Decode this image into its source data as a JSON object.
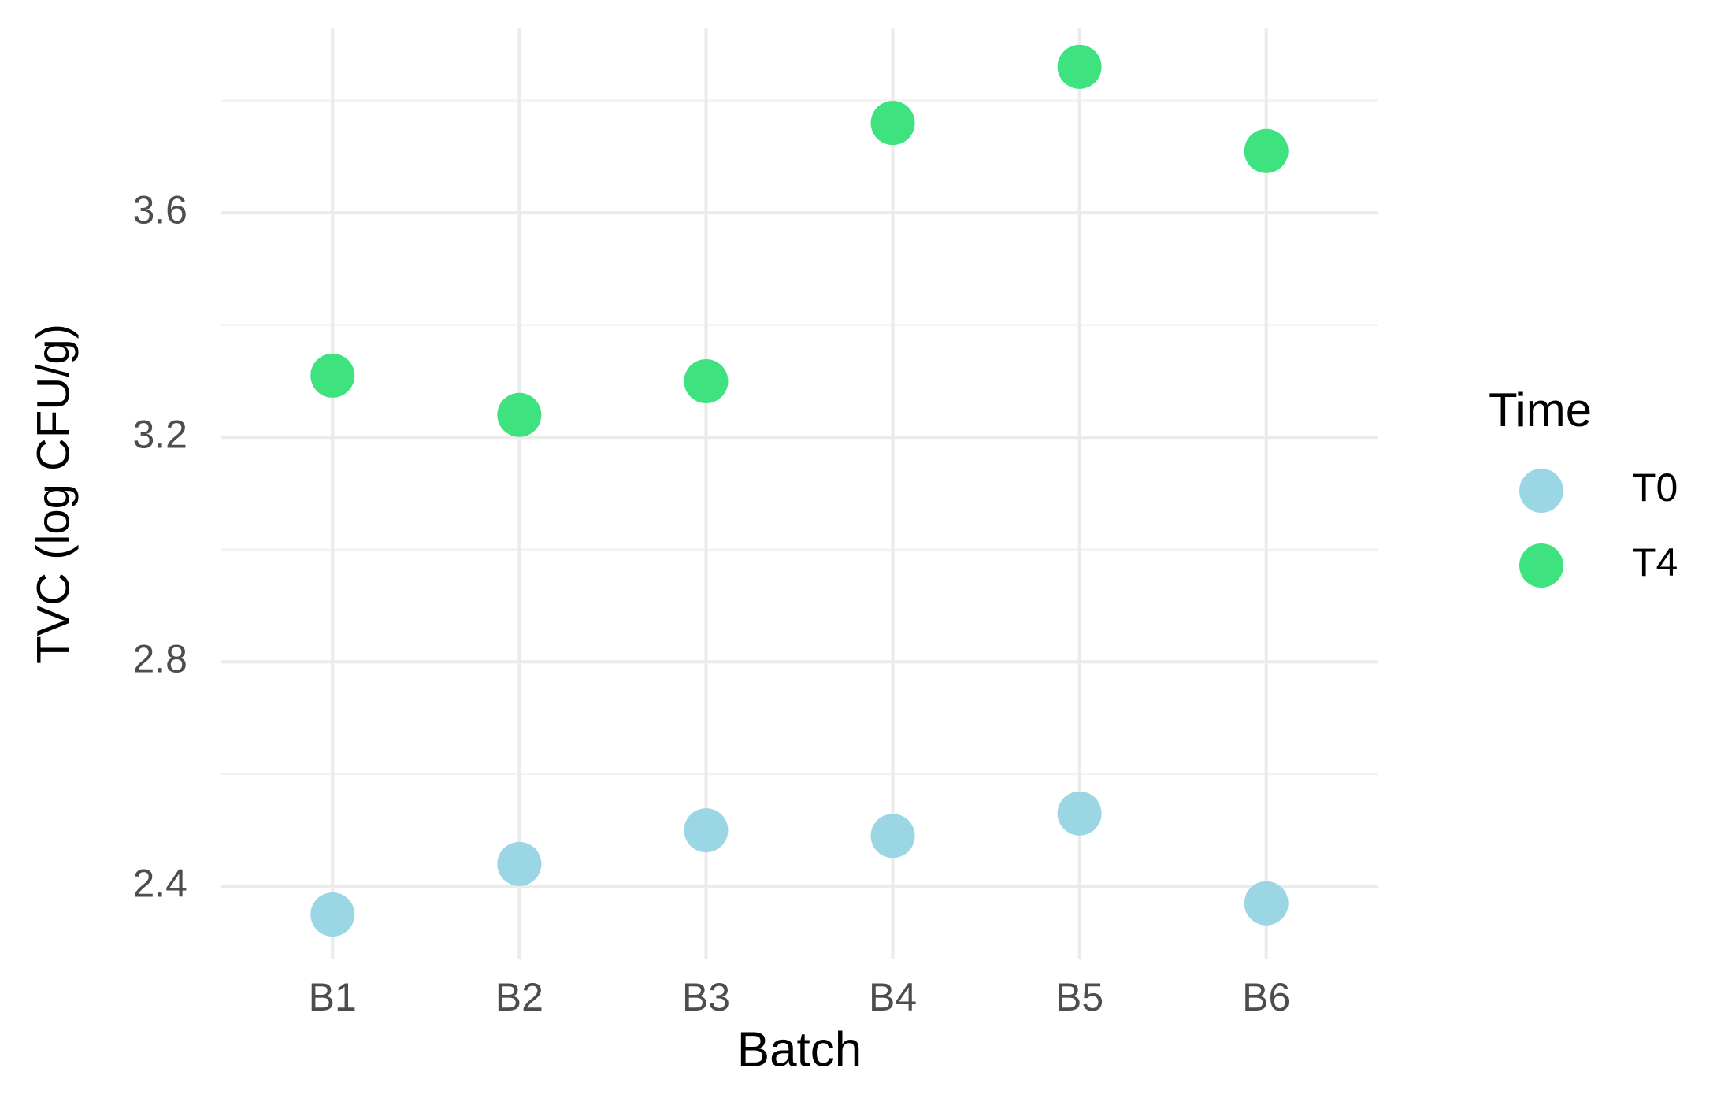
{
  "chart_data": {
    "type": "scatter",
    "x_label": "Batch",
    "y_label": "TVC (log CFU/g)",
    "categories": [
      "B1",
      "B2",
      "B3",
      "B4",
      "B5",
      "B6"
    ],
    "series": [
      {
        "name": "T0",
        "color": "#9bd6e5",
        "values": [
          2.35,
          2.44,
          2.5,
          2.49,
          2.53,
          2.37
        ]
      },
      {
        "name": "T4",
        "color": "#3ee27f",
        "values": [
          3.31,
          3.24,
          3.3,
          3.76,
          3.86,
          3.71
        ]
      }
    ],
    "ylim": [
      2.27,
      3.93
    ],
    "yticks": [
      2.4,
      2.8,
      3.2,
      3.6
    ],
    "minor_yticks": [
      2.6,
      3.0,
      3.4,
      3.8
    ],
    "grid": true,
    "legend_title": "Time",
    "legend_position": "right"
  }
}
